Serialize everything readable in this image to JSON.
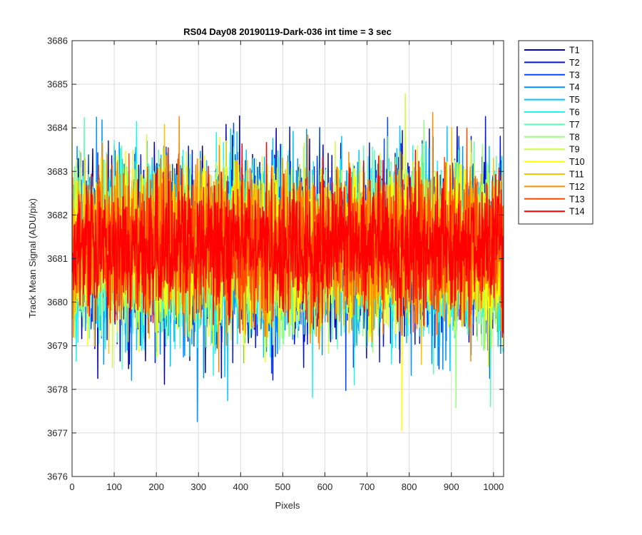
{
  "chart_data": {
    "type": "line",
    "title": "RS04 Day08 20190119-Dark-036 int time = 3 sec",
    "xlabel": "Pixels",
    "ylabel": "Track Mean Signal (ADU/pix)",
    "xlim": [
      0,
      1024
    ],
    "ylim": [
      3676,
      3686
    ],
    "xticks": [
      0,
      100,
      200,
      300,
      400,
      500,
      600,
      700,
      800,
      900,
      1000
    ],
    "xtick_labels": [
      "0",
      "100",
      "200",
      "300",
      "400",
      "500",
      "600",
      "700",
      "800",
      "900",
      "1000"
    ],
    "yticks": [
      3676,
      3677,
      3678,
      3679,
      3680,
      3681,
      3682,
      3683,
      3684,
      3685,
      3686
    ],
    "ytick_labels": [
      "3676",
      "3677",
      "3678",
      "3679",
      "3680",
      "3681",
      "3682",
      "3683",
      "3684",
      "3685",
      "3686"
    ],
    "grid": true,
    "legend_position": "outside-top-right",
    "x_points": 1024,
    "series": [
      {
        "name": "T1",
        "color": "#0000b3",
        "mean": 3681.2,
        "noise": 1.0
      },
      {
        "name": "T2",
        "color": "#0015e6",
        "mean": 3681.2,
        "noise": 1.0
      },
      {
        "name": "T3",
        "color": "#0049ff",
        "mean": 3681.2,
        "noise": 1.0
      },
      {
        "name": "T4",
        "color": "#0093ff",
        "mean": 3681.2,
        "noise": 0.95
      },
      {
        "name": "T5",
        "color": "#00c7ff",
        "mean": 3681.2,
        "noise": 0.95
      },
      {
        "name": "T6",
        "color": "#1ff5ee",
        "mean": 3681.2,
        "noise": 0.95
      },
      {
        "name": "T7",
        "color": "#5bffb6",
        "mean": 3681.2,
        "noise": 0.95
      },
      {
        "name": "T8",
        "color": "#97ff7a",
        "mean": 3681.2,
        "noise": 0.9
      },
      {
        "name": "T9",
        "color": "#cfff3c",
        "mean": 3681.3,
        "noise": 0.9
      },
      {
        "name": "T10",
        "color": "#ffff00",
        "mean": 3681.3,
        "noise": 0.9
      },
      {
        "name": "T11",
        "color": "#ffc000",
        "mean": 3681.3,
        "noise": 0.85
      },
      {
        "name": "T12",
        "color": "#ff8a00",
        "mean": 3681.3,
        "noise": 0.85
      },
      {
        "name": "T13",
        "color": "#ff4a00",
        "mean": 3681.3,
        "noise": 0.8
      },
      {
        "name": "T14",
        "color": "#ff0000",
        "mean": 3681.3,
        "noise": 0.75
      }
    ]
  }
}
